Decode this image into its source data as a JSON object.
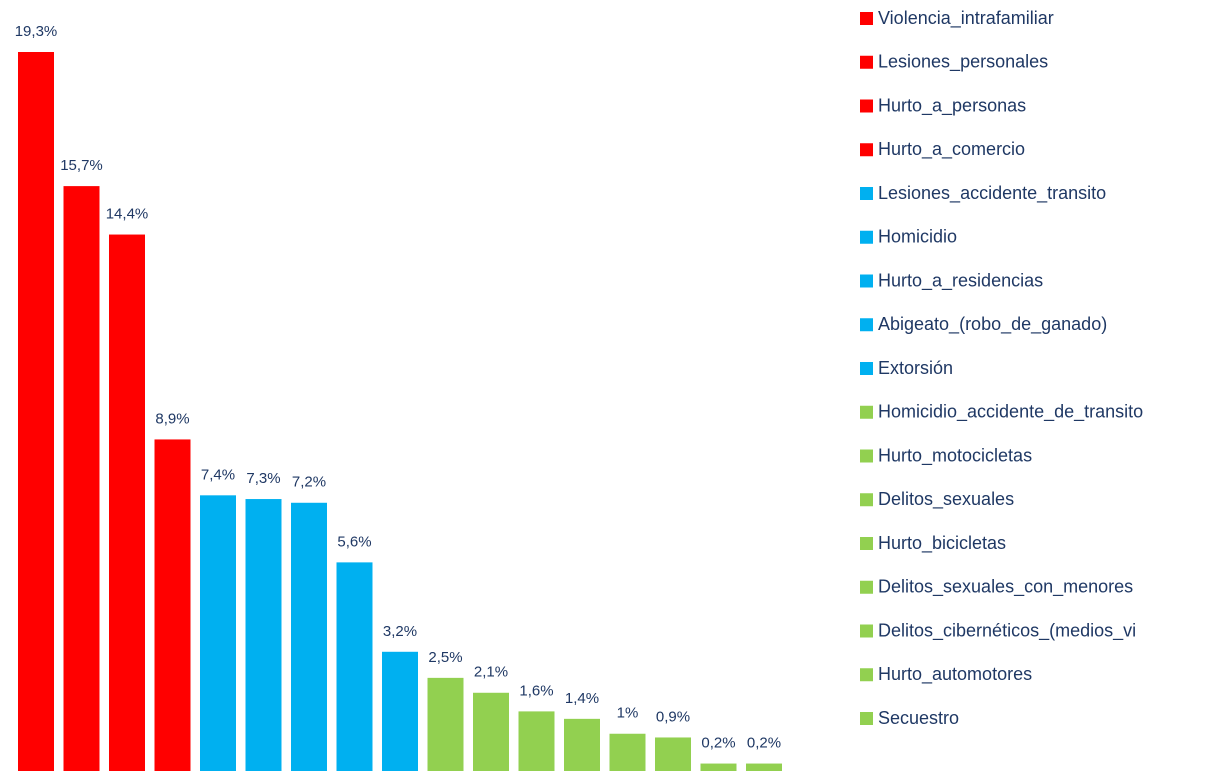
{
  "chart_data": {
    "type": "bar",
    "categories": [
      "Violencia_intrafamiliar",
      "Lesiones_personales",
      "Hurto_a_personas",
      "Hurto_a_comercio",
      "Lesiones_accidente_transito",
      "Homicidio",
      "Hurto_a_residencias",
      "Abigeato_(robo_de_ganado)",
      "Extorsión",
      "Homicidio_accidente_de_transito",
      "Hurto_motocicletas",
      "Delitos_sexuales",
      "Hurto_bicicletas",
      "Delitos_sexuales_con_menores",
      "Delitos_cibernéticos_(medios_vi",
      "Hurto_automotores",
      "Secuestro"
    ],
    "values": [
      19.3,
      15.7,
      14.4,
      8.9,
      7.4,
      7.3,
      7.2,
      5.6,
      3.2,
      2.5,
      2.1,
      1.6,
      1.4,
      1,
      0.9,
      0.2,
      0.2
    ],
    "value_labels": [
      "19,3%",
      "15,7%",
      "14,4%",
      "8,9%",
      "7,4%",
      "7,3%",
      "7,2%",
      "5,6%",
      "3,2%",
      "2,5%",
      "2,1%",
      "1,6%",
      "1,4%",
      "1%",
      "0,9%",
      "0,2%",
      "0,2%"
    ],
    "colors": [
      "#ff0000",
      "#ff0000",
      "#ff0000",
      "#ff0000",
      "#00b0f0",
      "#00b0f0",
      "#00b0f0",
      "#00b0f0",
      "#00b0f0",
      "#92d050",
      "#92d050",
      "#92d050",
      "#92d050",
      "#92d050",
      "#92d050",
      "#92d050",
      "#92d050"
    ],
    "legend": "right"
  }
}
